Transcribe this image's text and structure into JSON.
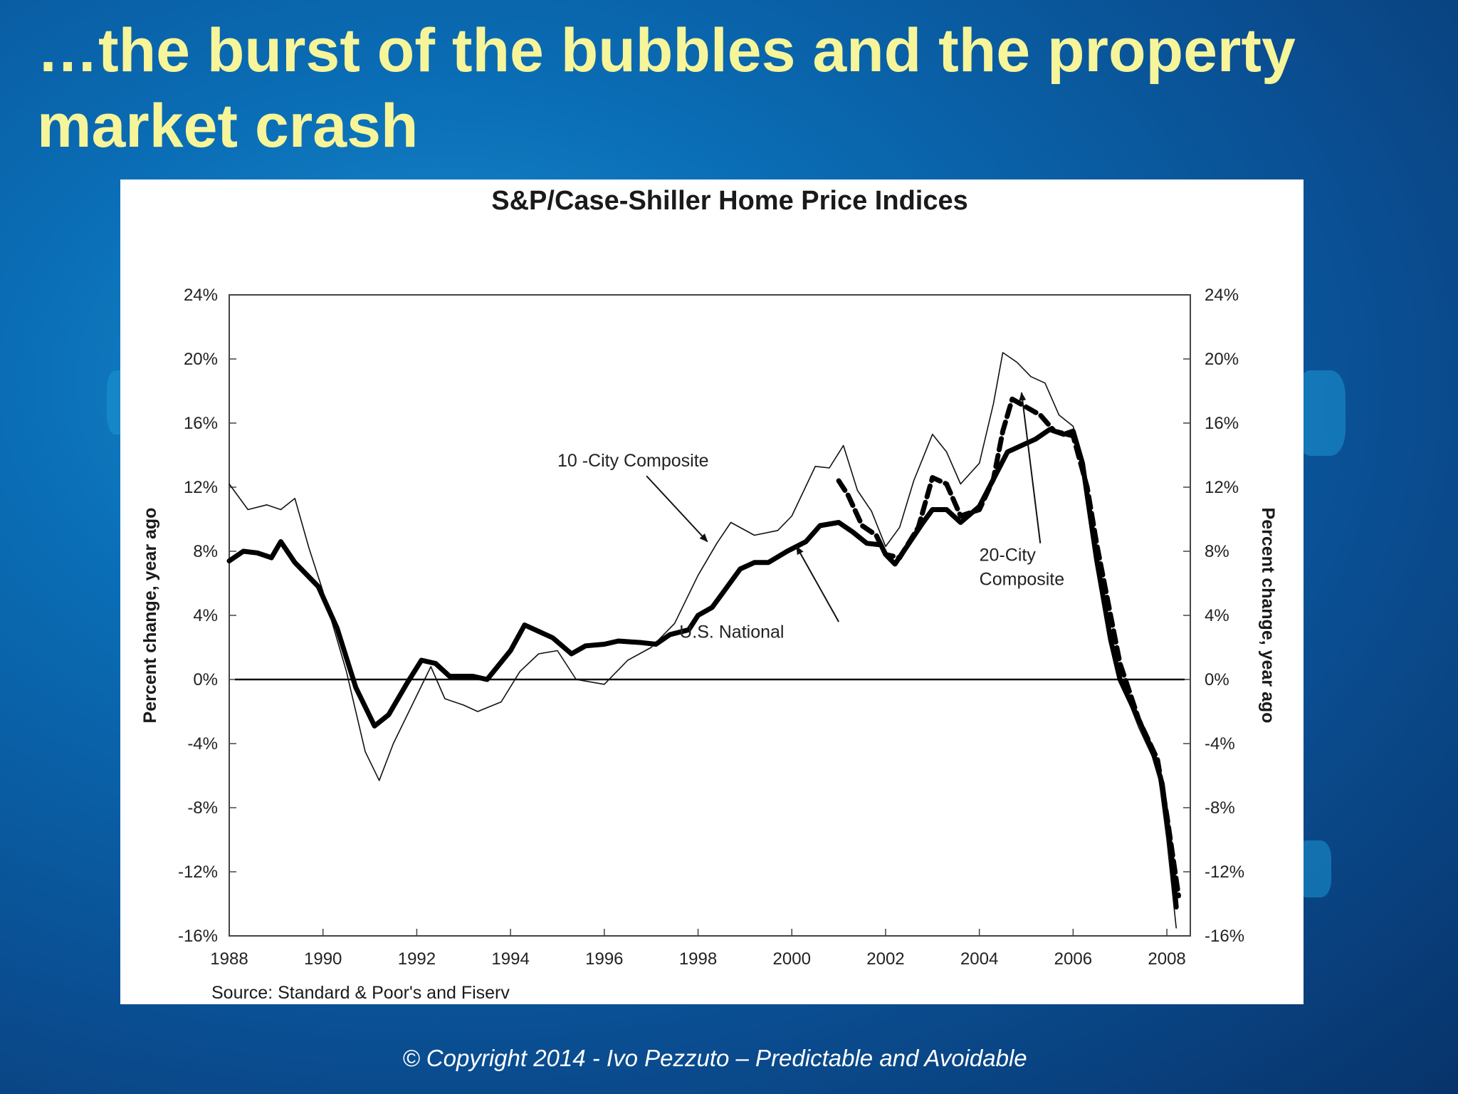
{
  "slide": {
    "title": "…the burst of the bubbles  and the property market crash",
    "footer": "© Copyright  2014  - Ivo Pezzuto –  Predictable and  Avoidable"
  },
  "colors": {
    "title": "#f7f59a",
    "panel": "#ffffff",
    "ink": "#111111"
  },
  "chart_data": {
    "type": "line",
    "title": "S&P/Case-Shiller Home Price Indices",
    "ylabel": "Percent change, year ago",
    "ylabel_right": "Percent change, year ago",
    "source": "Source: Standard & Poor's and Fiserv",
    "xlim": [
      1988,
      2008.5
    ],
    "ylim": [
      -16,
      24
    ],
    "x_ticks": [
      1988,
      1990,
      1992,
      1994,
      1996,
      1998,
      2000,
      2002,
      2004,
      2006,
      2008
    ],
    "x_tick_labels": [
      "1988",
      "1990",
      "1992",
      "1994",
      "1996",
      "1998",
      "2000",
      "2002",
      "2004",
      "2006",
      "2008"
    ],
    "y_ticks": [
      24,
      20,
      16,
      12,
      8,
      4,
      0,
      -4,
      -8,
      -12,
      -16
    ],
    "y_tick_labels": [
      "24%",
      "20%",
      "16%",
      "12%",
      "8%",
      "4%",
      "0%",
      "-4%",
      "-8%",
      "-12%",
      "-16%"
    ],
    "zero_line": 0,
    "series": [
      {
        "name": "10 -City Composite",
        "style": "thin",
        "points": [
          [
            1988,
            12.2
          ],
          [
            1988.4,
            10.6
          ],
          [
            1988.8,
            10.9
          ],
          [
            1989.1,
            10.6
          ],
          [
            1989.4,
            11.3
          ],
          [
            1989.7,
            8.2
          ],
          [
            1990,
            5.5
          ],
          [
            1990.5,
            0.5
          ],
          [
            1990.9,
            -4.5
          ],
          [
            1991.2,
            -6.3
          ],
          [
            1991.5,
            -4.0
          ],
          [
            1992,
            -1.0
          ],
          [
            1992.3,
            0.8
          ],
          [
            1992.6,
            -1.2
          ],
          [
            1993,
            -1.6
          ],
          [
            1993.3,
            -2.0
          ],
          [
            1993.8,
            -1.4
          ],
          [
            1994.2,
            0.5
          ],
          [
            1994.6,
            1.6
          ],
          [
            1995,
            1.8
          ],
          [
            1995.4,
            0.0
          ],
          [
            1996,
            -0.3
          ],
          [
            1996.5,
            1.2
          ],
          [
            1997,
            2.0
          ],
          [
            1997.5,
            3.5
          ],
          [
            1998,
            6.5
          ],
          [
            1998.4,
            8.5
          ],
          [
            1998.7,
            9.8
          ],
          [
            1999.2,
            9.0
          ],
          [
            1999.7,
            9.3
          ],
          [
            2000,
            10.2
          ],
          [
            2000.5,
            13.3
          ],
          [
            2000.8,
            13.2
          ],
          [
            2001.1,
            14.6
          ],
          [
            2001.4,
            11.8
          ],
          [
            2001.7,
            10.5
          ],
          [
            2002,
            8.3
          ],
          [
            2002.3,
            9.5
          ],
          [
            2002.6,
            12.4
          ],
          [
            2003,
            15.3
          ],
          [
            2003.3,
            14.2
          ],
          [
            2003.6,
            12.2
          ],
          [
            2004,
            13.5
          ],
          [
            2004.3,
            17.2
          ],
          [
            2004.5,
            20.4
          ],
          [
            2004.8,
            19.8
          ],
          [
            2005.1,
            18.9
          ],
          [
            2005.4,
            18.5
          ],
          [
            2005.7,
            16.5
          ],
          [
            2006,
            15.8
          ],
          [
            2006.2,
            13.5
          ],
          [
            2006.5,
            8.0
          ],
          [
            2006.8,
            3.0
          ],
          [
            2007,
            0.0
          ],
          [
            2007.4,
            -3.0
          ],
          [
            2007.8,
            -5.5
          ],
          [
            2008,
            -10.0
          ],
          [
            2008.2,
            -15.5
          ]
        ]
      },
      {
        "name": "U.S. National",
        "style": "thick",
        "points": [
          [
            1988,
            7.4
          ],
          [
            1988.3,
            8.0
          ],
          [
            1988.6,
            7.9
          ],
          [
            1988.9,
            7.6
          ],
          [
            1989.1,
            8.6
          ],
          [
            1989.4,
            7.3
          ],
          [
            1989.9,
            5.8
          ],
          [
            1990.3,
            3.2
          ],
          [
            1990.7,
            -0.5
          ],
          [
            1991.1,
            -2.9
          ],
          [
            1991.4,
            -2.2
          ],
          [
            1991.8,
            -0.2
          ],
          [
            1992.1,
            1.2
          ],
          [
            1992.4,
            1.0
          ],
          [
            1992.7,
            0.2
          ],
          [
            1993.2,
            0.2
          ],
          [
            1993.5,
            0.0
          ],
          [
            1994,
            1.8
          ],
          [
            1994.3,
            3.4
          ],
          [
            1994.9,
            2.6
          ],
          [
            1995.3,
            1.6
          ],
          [
            1995.6,
            2.1
          ],
          [
            1996,
            2.2
          ],
          [
            1996.3,
            2.4
          ],
          [
            1996.8,
            2.3
          ],
          [
            1997.1,
            2.2
          ],
          [
            1997.4,
            2.8
          ],
          [
            1997.8,
            3.1
          ],
          [
            1998,
            4.0
          ],
          [
            1998.3,
            4.5
          ],
          [
            1998.5,
            5.3
          ],
          [
            1998.9,
            6.9
          ],
          [
            1999.2,
            7.3
          ],
          [
            1999.5,
            7.3
          ],
          [
            1999.9,
            8.0
          ],
          [
            2000.3,
            8.6
          ],
          [
            2000.6,
            9.6
          ],
          [
            2001,
            9.8
          ],
          [
            2001.3,
            9.2
          ],
          [
            2001.6,
            8.5
          ],
          [
            2001.9,
            8.4
          ],
          [
            2002,
            7.8
          ],
          [
            2002.2,
            7.2
          ],
          [
            2002.5,
            8.5
          ],
          [
            2002.8,
            9.8
          ],
          [
            2003,
            10.6
          ],
          [
            2003.3,
            10.6
          ],
          [
            2003.6,
            9.8
          ],
          [
            2004,
            10.8
          ],
          [
            2004.3,
            12.5
          ],
          [
            2004.6,
            14.2
          ],
          [
            2004.9,
            14.6
          ],
          [
            2005.2,
            15.0
          ],
          [
            2005.5,
            15.6
          ],
          [
            2005.8,
            15.3
          ],
          [
            2006,
            15.5
          ],
          [
            2006.2,
            13.5
          ],
          [
            2006.5,
            7.5
          ],
          [
            2006.8,
            2.5
          ],
          [
            2007,
            0.0
          ],
          [
            2007.4,
            -2.5
          ],
          [
            2007.7,
            -4.5
          ],
          [
            2007.9,
            -6.5
          ],
          [
            2008.1,
            -11.0
          ],
          [
            2008.2,
            -14.2
          ]
        ]
      },
      {
        "name": "20-City Composite",
        "style": "dashed",
        "points": [
          [
            2001,
            12.4
          ],
          [
            2001.2,
            11.5
          ],
          [
            2001.5,
            9.6
          ],
          [
            2001.8,
            9.0
          ],
          [
            2002,
            7.8
          ],
          [
            2002.3,
            7.6
          ],
          [
            2002.7,
            9.5
          ],
          [
            2003,
            12.6
          ],
          [
            2003.3,
            12.2
          ],
          [
            2003.6,
            10.2
          ],
          [
            2004,
            10.6
          ],
          [
            2004.3,
            12.5
          ],
          [
            2004.5,
            15.5
          ],
          [
            2004.7,
            17.5
          ],
          [
            2005,
            17.0
          ],
          [
            2005.3,
            16.5
          ],
          [
            2005.6,
            15.5
          ],
          [
            2006,
            15.2
          ],
          [
            2006.3,
            12.0
          ],
          [
            2006.5,
            8.5
          ],
          [
            2006.8,
            4.0
          ],
          [
            2007,
            1.0
          ],
          [
            2007.4,
            -2.5
          ],
          [
            2007.8,
            -5.0
          ],
          [
            2008,
            -8.5
          ],
          [
            2008.2,
            -12.5
          ],
          [
            2008.25,
            -13.5
          ]
        ]
      }
    ],
    "annotations": [
      {
        "text": "10 -City Composite",
        "lines": [
          "10 -City Composite"
        ],
        "at": [
          1995.0,
          13.3
        ],
        "arrow_from": [
          1996.9,
          12.7
        ],
        "arrow_to": [
          1998.2,
          8.6
        ]
      },
      {
        "text": "U.S. National",
        "lines": [
          "U.S. National"
        ],
        "at": [
          1997.6,
          2.6
        ],
        "arrow_from": [
          2001.0,
          3.6
        ],
        "arrow_to": [
          2000.1,
          8.3
        ]
      },
      {
        "text": "20-City Composite",
        "lines": [
          "20-City",
          "Composite"
        ],
        "at": [
          2004.0,
          7.4
        ],
        "arrow_from": [
          2005.3,
          8.5
        ],
        "arrow_to": [
          2004.9,
          17.9
        ]
      }
    ]
  }
}
